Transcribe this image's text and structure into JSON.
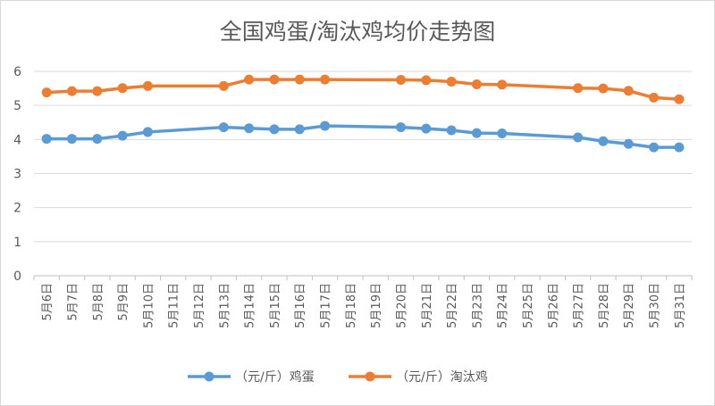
{
  "chart_data": {
    "type": "line",
    "title": "全国鸡蛋/淘汰鸡均价走势图",
    "xlabel": "",
    "ylabel": "",
    "categories": [
      "5月6日",
      "5月7日",
      "5月8日",
      "5月9日",
      "5月10日",
      "5月11日",
      "5月12日",
      "5月13日",
      "5月14日",
      "5月15日",
      "5月16日",
      "5月17日",
      "5月18日",
      "5月19日",
      "5月20日",
      "5月21日",
      "5月22日",
      "5月23日",
      "5月24日",
      "5月25日",
      "5月26日",
      "5月27日",
      "5月28日",
      "5月29日",
      "5月30日",
      "5月31日"
    ],
    "ylim": [
      0,
      6
    ],
    "yticks": [
      0,
      1,
      2,
      3,
      4,
      5,
      6
    ],
    "grid": true,
    "legend_position": "bottom",
    "series": [
      {
        "name": "（元/斤）鸡蛋",
        "color": "#5b9bd5",
        "values": [
          4.02,
          4.02,
          4.02,
          4.11,
          4.22,
          null,
          null,
          4.36,
          4.33,
          4.3,
          4.3,
          4.4,
          null,
          null,
          4.36,
          4.32,
          4.27,
          4.19,
          4.18,
          null,
          null,
          4.06,
          3.95,
          3.87,
          3.77,
          3.77
        ]
      },
      {
        "name": "（元/斤）淘汰鸡",
        "color": "#ed7d31",
        "values": [
          5.38,
          5.42,
          5.42,
          5.51,
          5.57,
          null,
          null,
          5.57,
          5.76,
          5.76,
          5.76,
          5.76,
          null,
          null,
          5.75,
          5.74,
          5.7,
          5.62,
          5.61,
          null,
          null,
          5.51,
          5.5,
          5.43,
          5.23,
          5.18
        ]
      }
    ]
  }
}
